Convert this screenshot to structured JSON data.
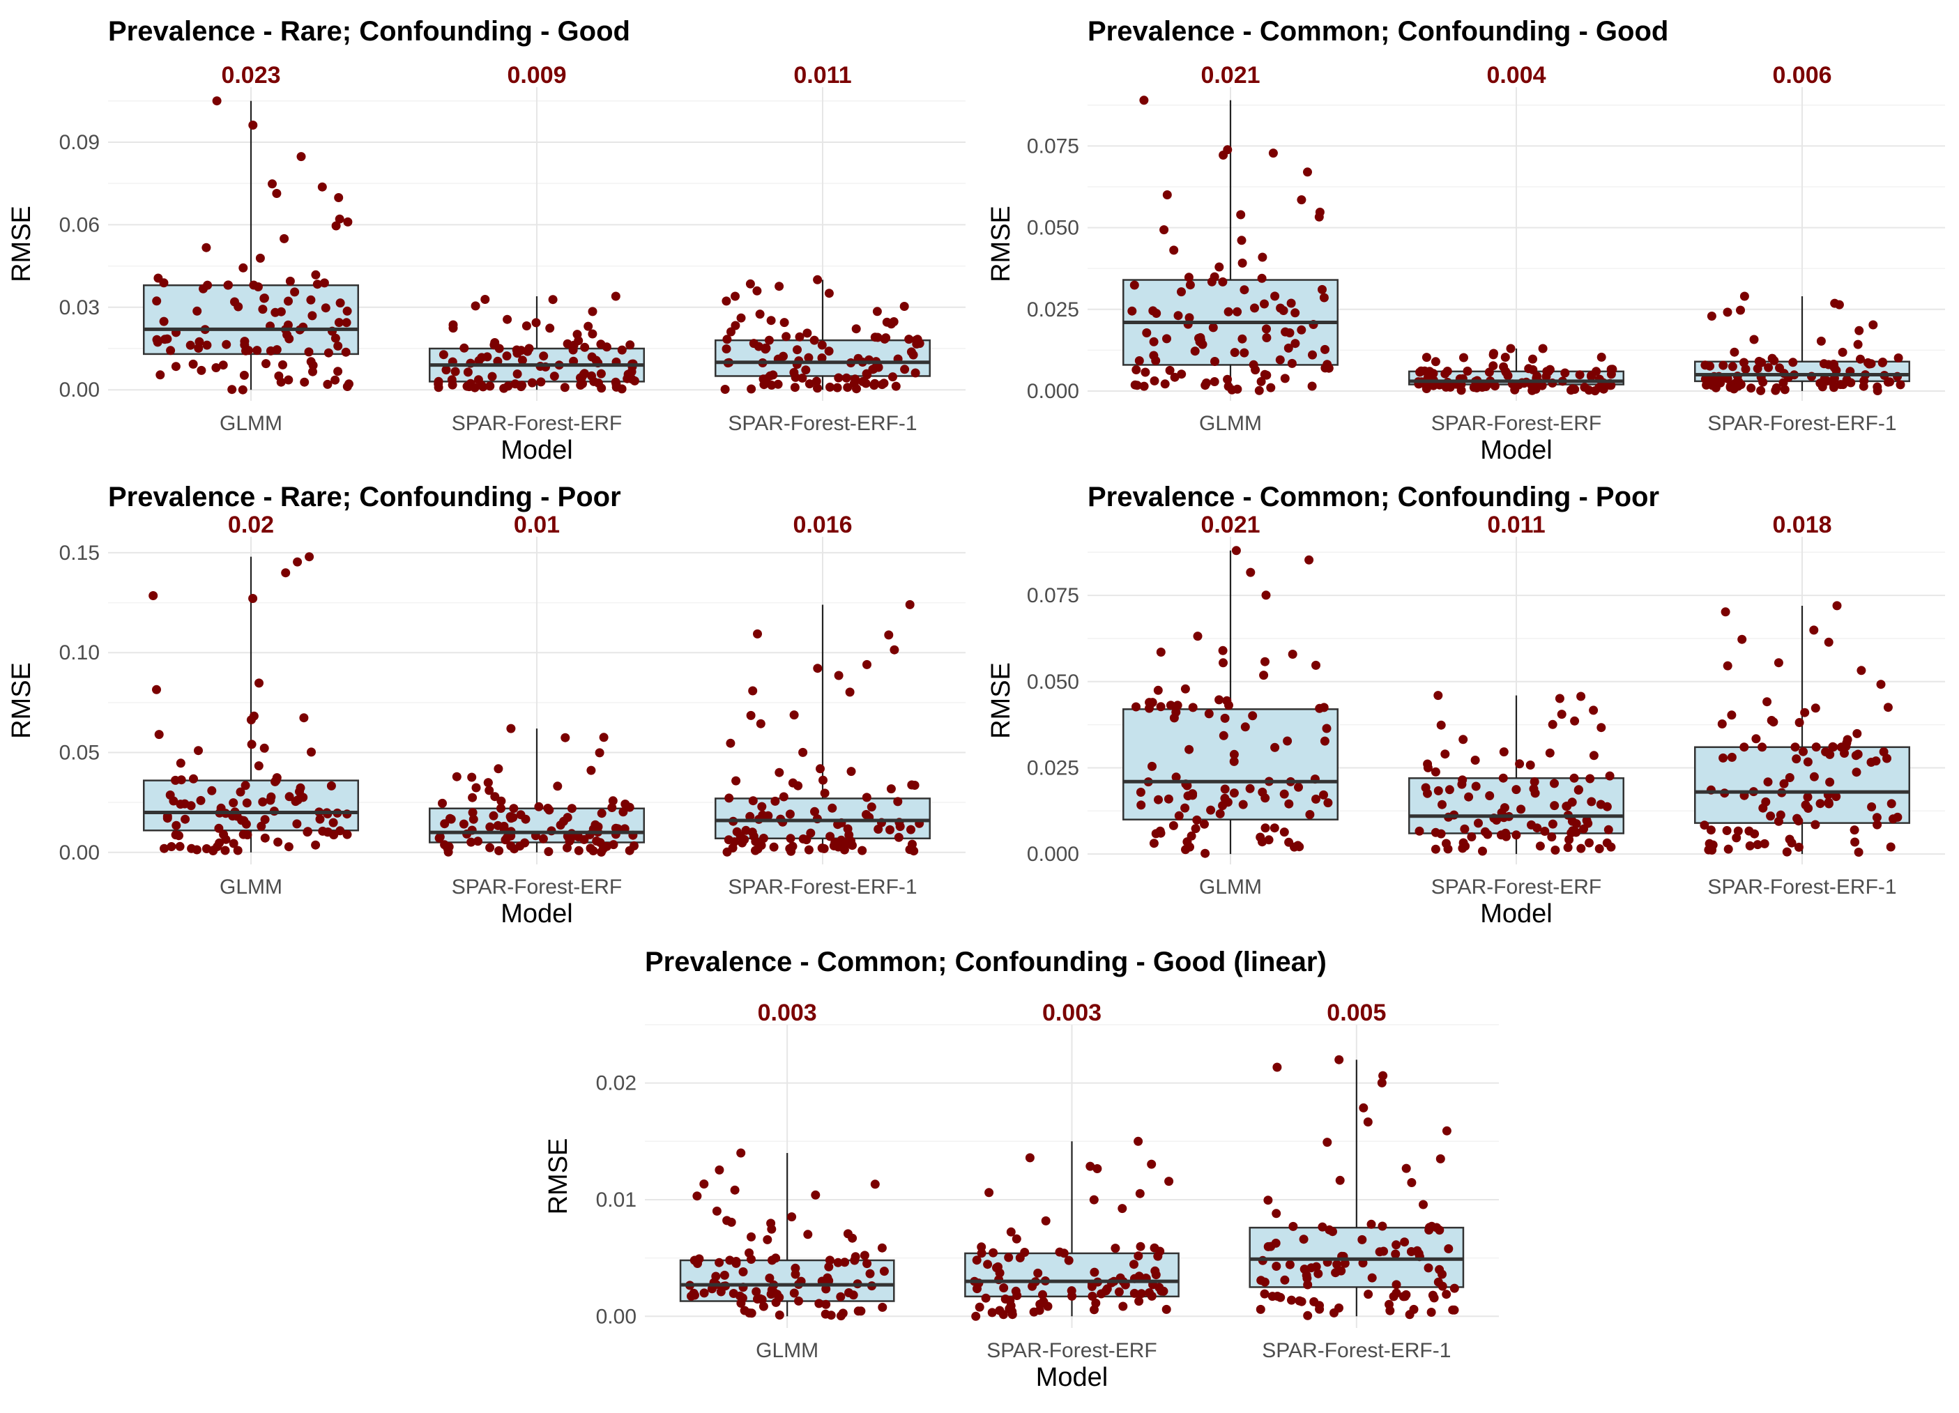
{
  "colors": {
    "box_fill": "#c6e2ec",
    "box_stroke": "#333333",
    "point": "#7b0000",
    "mean_label": "#7b0000",
    "grid_major": "#e6e6e6",
    "grid_minor": "#f2f2f2",
    "whisker": "#222222"
  },
  "chart_data": [
    {
      "type": "boxplot",
      "title": "Prevalence - Rare; Confounding - Good",
      "xlabel": "Model",
      "ylabel": "RMSE",
      "categories": [
        "GLMM",
        "SPAR-Forest-ERF",
        "SPAR-Forest-ERF-1"
      ],
      "ylim": [
        -0.004,
        0.11
      ],
      "yticks": [
        0.0,
        0.03,
        0.06,
        0.09
      ],
      "ytick_labels": [
        "0.00",
        "0.03",
        "0.06",
        "0.09"
      ],
      "mean_labels": [
        "0.023",
        "0.009",
        "0.011"
      ],
      "boxes": [
        {
          "whisker_low": 0.0,
          "q1": 0.013,
          "median": 0.022,
          "q3": 0.038,
          "whisker_high": 0.105,
          "n_points": 100,
          "seed": 11
        },
        {
          "whisker_low": 0.0,
          "q1": 0.003,
          "median": 0.009,
          "q3": 0.015,
          "whisker_high": 0.034,
          "n_points": 100,
          "seed": 12
        },
        {
          "whisker_low": 0.0,
          "q1": 0.005,
          "median": 0.01,
          "q3": 0.018,
          "whisker_high": 0.04,
          "n_points": 100,
          "seed": 13
        }
      ]
    },
    {
      "type": "boxplot",
      "title": "Prevalence - Common; Confounding - Good",
      "xlabel": "Model",
      "ylabel": "RMSE",
      "categories": [
        "GLMM",
        "SPAR-Forest-ERF",
        "SPAR-Forest-ERF-1"
      ],
      "ylim": [
        -0.003,
        0.093
      ],
      "yticks": [
        0.0,
        0.025,
        0.05,
        0.075
      ],
      "ytick_labels": [
        "0.000",
        "0.025",
        "0.050",
        "0.075"
      ],
      "mean_labels": [
        "0.021",
        "0.004",
        "0.006"
      ],
      "boxes": [
        {
          "whisker_low": 0.0,
          "q1": 0.008,
          "median": 0.021,
          "q3": 0.034,
          "whisker_high": 0.089,
          "n_points": 100,
          "seed": 21
        },
        {
          "whisker_low": 0.0,
          "q1": 0.002,
          "median": 0.003,
          "q3": 0.006,
          "whisker_high": 0.013,
          "n_points": 100,
          "seed": 22
        },
        {
          "whisker_low": 0.0,
          "q1": 0.003,
          "median": 0.005,
          "q3": 0.009,
          "whisker_high": 0.029,
          "n_points": 100,
          "seed": 23
        }
      ]
    },
    {
      "type": "boxplot",
      "title": "Prevalence - Rare; Confounding - Poor",
      "xlabel": "Model",
      "ylabel": "RMSE",
      "categories": [
        "GLMM",
        "SPAR-Forest-ERF",
        "SPAR-Forest-ERF-1"
      ],
      "ylim": [
        -0.006,
        0.158
      ],
      "yticks": [
        0.0,
        0.05,
        0.1,
        0.15
      ],
      "ytick_labels": [
        "0.00",
        "0.05",
        "0.10",
        "0.15"
      ],
      "mean_labels": [
        "0.02",
        "0.01",
        "0.016"
      ],
      "boxes": [
        {
          "whisker_low": 0.0,
          "q1": 0.011,
          "median": 0.02,
          "q3": 0.036,
          "whisker_high": 0.148,
          "n_points": 100,
          "seed": 31
        },
        {
          "whisker_low": 0.0,
          "q1": 0.005,
          "median": 0.01,
          "q3": 0.022,
          "whisker_high": 0.062,
          "n_points": 100,
          "seed": 32
        },
        {
          "whisker_low": 0.0,
          "q1": 0.007,
          "median": 0.016,
          "q3": 0.027,
          "whisker_high": 0.124,
          "n_points": 100,
          "seed": 33
        }
      ]
    },
    {
      "type": "boxplot",
      "title": "Prevalence - Common; Confounding - Poor",
      "xlabel": "Model",
      "ylabel": "RMSE",
      "categories": [
        "GLMM",
        "SPAR-Forest-ERF",
        "SPAR-Forest-ERF-1"
      ],
      "ylim": [
        -0.003,
        0.092
      ],
      "yticks": [
        0.0,
        0.025,
        0.05,
        0.075
      ],
      "ytick_labels": [
        "0.000",
        "0.025",
        "0.050",
        "0.075"
      ],
      "mean_labels": [
        "0.021",
        "0.011",
        "0.018"
      ],
      "boxes": [
        {
          "whisker_low": 0.0,
          "q1": 0.01,
          "median": 0.021,
          "q3": 0.042,
          "whisker_high": 0.088,
          "n_points": 100,
          "seed": 41
        },
        {
          "whisker_low": 0.0,
          "q1": 0.006,
          "median": 0.011,
          "q3": 0.022,
          "whisker_high": 0.046,
          "n_points": 100,
          "seed": 42
        },
        {
          "whisker_low": 0.0,
          "q1": 0.009,
          "median": 0.018,
          "q3": 0.031,
          "whisker_high": 0.072,
          "n_points": 100,
          "seed": 43
        }
      ]
    },
    {
      "type": "boxplot",
      "title": "Prevalence - Common; Confounding - Good (linear)",
      "xlabel": "Model",
      "ylabel": "RMSE",
      "categories": [
        "GLMM",
        "SPAR-Forest-ERF",
        "SPAR-Forest-ERF-1"
      ],
      "ylim": [
        -0.001,
        0.025
      ],
      "yticks": [
        0.0,
        0.01,
        0.02
      ],
      "ytick_labels": [
        "0.00",
        "0.01",
        "0.02"
      ],
      "mean_labels": [
        "0.003",
        "0.003",
        "0.005"
      ],
      "boxes": [
        {
          "whisker_low": 0.0,
          "q1": 0.0013,
          "median": 0.0027,
          "q3": 0.0048,
          "whisker_high": 0.014,
          "n_points": 100,
          "seed": 51
        },
        {
          "whisker_low": 0.0,
          "q1": 0.0017,
          "median": 0.003,
          "q3": 0.0054,
          "whisker_high": 0.015,
          "n_points": 100,
          "seed": 52
        },
        {
          "whisker_low": 0.0,
          "q1": 0.0025,
          "median": 0.0049,
          "q3": 0.0076,
          "whisker_high": 0.022,
          "n_points": 100,
          "seed": 53
        }
      ]
    }
  ]
}
